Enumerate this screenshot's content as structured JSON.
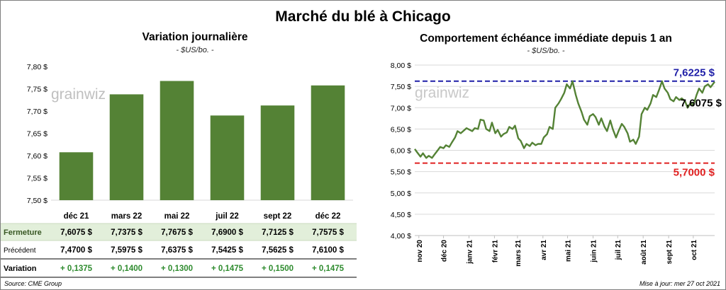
{
  "title": "Marché du blé à Chicago",
  "watermark": "grainwiz",
  "source": "Source: CME Group",
  "updated": "Mise à jour: mer 27 oct 2021",
  "table": {
    "rows": [
      {
        "label": "Fermeture",
        "values": [
          "7,6075 $",
          "7,7375 $",
          "7,7675 $",
          "7,6900 $",
          "7,7125 $",
          "7,7575 $"
        ]
      },
      {
        "label": "Précédent",
        "values": [
          "7,4700 $",
          "7,5975 $",
          "7,6375 $",
          "7,5425 $",
          "7,5625 $",
          "7,6100 $"
        ]
      },
      {
        "label": "Variation",
        "values": [
          "+ 0,1375",
          "+ 0,1400",
          "+ 0,1300",
          "+ 0,1475",
          "+ 0,1500",
          "+ 0,1475"
        ]
      }
    ],
    "colors": {
      "fermeture_bg": "#e2efda",
      "variation_text": "#2e8b2e"
    }
  },
  "chart_data": [
    {
      "type": "bar",
      "title": "Variation journalière",
      "unit": "- $US/bo. -",
      "categories": [
        "déc 21",
        "mars 22",
        "mai 22",
        "juil 22",
        "sept 22",
        "déc 22"
      ],
      "values": [
        7.6075,
        7.7375,
        7.7675,
        7.69,
        7.7125,
        7.7575
      ],
      "ylim": [
        7.5,
        7.8
      ],
      "yticks": [
        "7,50 $",
        "7,55 $",
        "7,60 $",
        "7,65 $",
        "7,70 $",
        "7,75 $",
        "7,80 $"
      ],
      "ytick_values": [
        7.5,
        7.55,
        7.6,
        7.65,
        7.7,
        7.75,
        7.8
      ],
      "color": "#548235",
      "grid": false
    },
    {
      "type": "line",
      "title": "Comportement  échéance immédiate depuis 1 an",
      "unit": "- $US/bo. -",
      "xlim": [
        "2020-10-27",
        "2021-10-27"
      ],
      "xticks": [
        "nov 20",
        "déc 20",
        "janv 21",
        "févr 21",
        "mars 21",
        "avr 21",
        "mai 21",
        "juin 21",
        "juil 21",
        "août 21",
        "sept 21",
        "oct 21"
      ],
      "xtick_dates": [
        "2020-11-01",
        "2020-12-01",
        "2021-01-01",
        "2021-02-01",
        "2021-03-01",
        "2021-04-01",
        "2021-05-01",
        "2021-06-01",
        "2021-07-01",
        "2021-08-01",
        "2021-09-01",
        "2021-10-01"
      ],
      "ylim": [
        4.0,
        8.0
      ],
      "yticks": [
        "4,00 $",
        "4,50 $",
        "5,00 $",
        "5,50 $",
        "6,00 $",
        "6,50 $",
        "7,00 $",
        "7,50 $",
        "8,00 $"
      ],
      "ytick_values": [
        4.0,
        4.5,
        5.0,
        5.5,
        6.0,
        6.5,
        7.0,
        7.5,
        8.0
      ],
      "grid": true,
      "color": "#548235",
      "series": [
        {
          "points": [
            [
              "2020-10-27",
              6.03
            ],
            [
              "2020-10-30",
              5.95
            ],
            [
              "2020-11-03",
              5.85
            ],
            [
              "2020-11-06",
              5.93
            ],
            [
              "2020-11-10",
              5.82
            ],
            [
              "2020-11-13",
              5.87
            ],
            [
              "2020-11-17",
              5.82
            ],
            [
              "2020-11-20",
              5.9
            ],
            [
              "2020-11-24",
              6.0
            ],
            [
              "2020-11-27",
              6.08
            ],
            [
              "2020-12-01",
              6.05
            ],
            [
              "2020-12-04",
              6.12
            ],
            [
              "2020-12-08",
              6.08
            ],
            [
              "2020-12-11",
              6.18
            ],
            [
              "2020-12-15",
              6.3
            ],
            [
              "2020-12-18",
              6.45
            ],
            [
              "2020-12-22",
              6.4
            ],
            [
              "2020-12-29",
              6.52
            ],
            [
              "2021-01-05",
              6.45
            ],
            [
              "2021-01-08",
              6.52
            ],
            [
              "2021-01-12",
              6.5
            ],
            [
              "2021-01-15",
              6.72
            ],
            [
              "2021-01-19",
              6.7
            ],
            [
              "2021-01-22",
              6.5
            ],
            [
              "2021-01-26",
              6.45
            ],
            [
              "2021-01-29",
              6.65
            ],
            [
              "2021-02-02",
              6.4
            ],
            [
              "2021-02-05",
              6.48
            ],
            [
              "2021-02-09",
              6.32
            ],
            [
              "2021-02-12",
              6.38
            ],
            [
              "2021-02-16",
              6.42
            ],
            [
              "2021-02-19",
              6.55
            ],
            [
              "2021-02-23",
              6.5
            ],
            [
              "2021-02-26",
              6.58
            ],
            [
              "2021-03-02",
              6.28
            ],
            [
              "2021-03-05",
              6.22
            ],
            [
              "2021-03-09",
              6.05
            ],
            [
              "2021-03-12",
              6.15
            ],
            [
              "2021-03-16",
              6.1
            ],
            [
              "2021-03-19",
              6.18
            ],
            [
              "2021-03-23",
              6.12
            ],
            [
              "2021-03-26",
              6.15
            ],
            [
              "2021-03-30",
              6.15
            ],
            [
              "2021-04-02",
              6.3
            ],
            [
              "2021-04-06",
              6.38
            ],
            [
              "2021-04-09",
              6.55
            ],
            [
              "2021-04-13",
              6.5
            ],
            [
              "2021-04-16",
              7.0
            ],
            [
              "2021-04-20",
              7.1
            ],
            [
              "2021-04-23",
              7.2
            ],
            [
              "2021-04-27",
              7.35
            ],
            [
              "2021-04-30",
              7.55
            ],
            [
              "2021-05-04",
              7.45
            ],
            [
              "2021-05-07",
              7.62
            ],
            [
              "2021-05-11",
              7.3
            ],
            [
              "2021-05-14",
              7.1
            ],
            [
              "2021-05-18",
              6.9
            ],
            [
              "2021-05-21",
              6.72
            ],
            [
              "2021-05-25",
              6.6
            ],
            [
              "2021-05-28",
              6.8
            ],
            [
              "2021-06-01",
              6.85
            ],
            [
              "2021-06-04",
              6.78
            ],
            [
              "2021-06-08",
              6.6
            ],
            [
              "2021-06-11",
              6.75
            ],
            [
              "2021-06-15",
              6.55
            ],
            [
              "2021-06-18",
              6.45
            ],
            [
              "2021-06-22",
              6.7
            ],
            [
              "2021-06-25",
              6.5
            ],
            [
              "2021-06-29",
              6.3
            ],
            [
              "2021-07-02",
              6.45
            ],
            [
              "2021-07-06",
              6.62
            ],
            [
              "2021-07-09",
              6.55
            ],
            [
              "2021-07-13",
              6.4
            ],
            [
              "2021-07-16",
              6.2
            ],
            [
              "2021-07-20",
              6.25
            ],
            [
              "2021-07-23",
              6.15
            ],
            [
              "2021-07-27",
              6.32
            ],
            [
              "2021-07-30",
              6.85
            ],
            [
              "2021-08-03",
              7.0
            ],
            [
              "2021-08-06",
              6.95
            ],
            [
              "2021-08-10",
              7.1
            ],
            [
              "2021-08-13",
              7.3
            ],
            [
              "2021-08-17",
              7.25
            ],
            [
              "2021-08-20",
              7.4
            ],
            [
              "2021-08-24",
              7.62
            ],
            [
              "2021-08-27",
              7.45
            ],
            [
              "2021-08-31",
              7.35
            ],
            [
              "2021-09-03",
              7.2
            ],
            [
              "2021-09-07",
              7.15
            ],
            [
              "2021-09-10",
              7.25
            ],
            [
              "2021-09-14",
              7.18
            ],
            [
              "2021-09-17",
              7.22
            ],
            [
              "2021-09-21",
              7.15
            ],
            [
              "2021-09-24",
              7.0
            ],
            [
              "2021-09-28",
              7.12
            ],
            [
              "2021-10-01",
              7.05
            ],
            [
              "2021-10-05",
              7.3
            ],
            [
              "2021-10-08",
              7.45
            ],
            [
              "2021-10-12",
              7.35
            ],
            [
              "2021-10-15",
              7.5
            ],
            [
              "2021-10-19",
              7.55
            ],
            [
              "2021-10-22",
              7.48
            ],
            [
              "2021-10-27",
              7.6075
            ]
          ]
        }
      ],
      "annotations": [
        {
          "label": "7,6225 $",
          "value": 7.6225,
          "color": "#1f1fa8",
          "style": "dashed-line"
        },
        {
          "label": "5,7000 $",
          "value": 5.7,
          "color": "#e02020",
          "style": "dashed-line"
        },
        {
          "label": "7,6075 $",
          "value": 7.6075,
          "color": "#000000",
          "style": "last-value"
        }
      ]
    }
  ]
}
